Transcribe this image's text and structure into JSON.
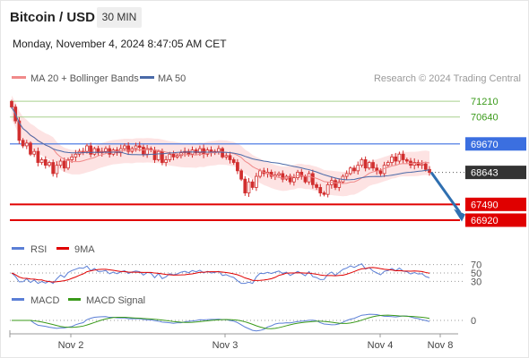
{
  "header": {
    "title": "Bitcoin / USD",
    "timeframe": "30 MIN",
    "datetime": "Monday, November 4, 2024 8:47:05 AM CET"
  },
  "legend": {
    "ma20": "MA 20 + Bollinger Bands",
    "ma50": "MA 50",
    "credit": "Research © 2024 Trading Central",
    "rsi": "RSI",
    "rsi_ma": "9MA",
    "macd": "MACD",
    "macd_signal": "MACD Signal"
  },
  "colors": {
    "bull": "#d12e2e",
    "bear": "#d12e2e",
    "ma20": "#f08a8a",
    "ma50": "#4a6aa8",
    "band_fill": "#fde3e3",
    "resistance": "#a8d08d",
    "pivot": "#3b6fe0",
    "support": "#e00000",
    "current": "#333333",
    "arrow": "#2f6fb0",
    "rsi": "#5b7fd6",
    "rsi_ma": "#e00000",
    "macd": "#5b7fd6",
    "macd_signal": "#3a9a1a"
  },
  "chart_data": [
    {
      "type": "candlestick",
      "ylim": [
        66500,
        71600
      ],
      "x_labels": [
        "Nov 2",
        "Nov 3",
        "Nov 4",
        "Nov 8"
      ],
      "levels": [
        {
          "value": 71210,
          "label": "71210",
          "kind": "resistance"
        },
        {
          "value": 70640,
          "label": "70640",
          "kind": "resistance"
        },
        {
          "value": 69670,
          "label": "69670",
          "kind": "pivot"
        },
        {
          "value": 68643,
          "label": "68643",
          "kind": "current"
        },
        {
          "value": 67490,
          "label": "67490",
          "kind": "support"
        },
        {
          "value": 66920,
          "label": "66920",
          "kind": "support"
        }
      ],
      "forecast": {
        "from": 68643,
        "to": 67000
      },
      "closes": [
        71000,
        70500,
        69800,
        69600,
        69700,
        69300,
        69400,
        69000,
        69100,
        68900,
        69000,
        68600,
        68900,
        69050,
        68800,
        69100,
        69200,
        69300,
        69400,
        69400,
        69600,
        69300,
        69500,
        69350,
        69400,
        69500,
        69300,
        69450,
        69350,
        69500,
        69600,
        69400,
        69500,
        69600,
        69550,
        69300,
        69500,
        69450,
        69100,
        69400,
        69000,
        69100,
        69300,
        69200,
        69250,
        69350,
        69400,
        69300,
        69450,
        69350,
        69500,
        69300,
        69450,
        69350,
        69400,
        69500,
        69200,
        69250,
        69100,
        69000,
        68700,
        68400,
        67900,
        68300,
        68100,
        68500,
        68700,
        68600,
        68650,
        68500,
        68550,
        68600,
        68400,
        68500,
        68300,
        68450,
        68650,
        68500,
        68300,
        68600,
        68200,
        68100,
        67900,
        67850,
        68200,
        68350,
        68100,
        68300,
        68500,
        68600,
        68800,
        68700,
        68900,
        69100,
        68800,
        69000,
        68800,
        68700,
        68600,
        68900,
        69000,
        69200,
        69050,
        69300,
        69100,
        69050,
        68900,
        69000,
        68900,
        68950,
        68750,
        68643
      ],
      "bands": {
        "upper_offset": 420,
        "lower_offset": 460
      }
    },
    {
      "type": "line",
      "name": "RSI",
      "ylim": [
        0,
        100
      ],
      "tick_labels": [
        "70",
        "50",
        "30"
      ],
      "ticks": [
        70,
        50,
        30
      ]
    },
    {
      "type": "line",
      "name": "MACD",
      "tick_labels": [
        "0"
      ],
      "ticks": [
        0
      ]
    }
  ]
}
